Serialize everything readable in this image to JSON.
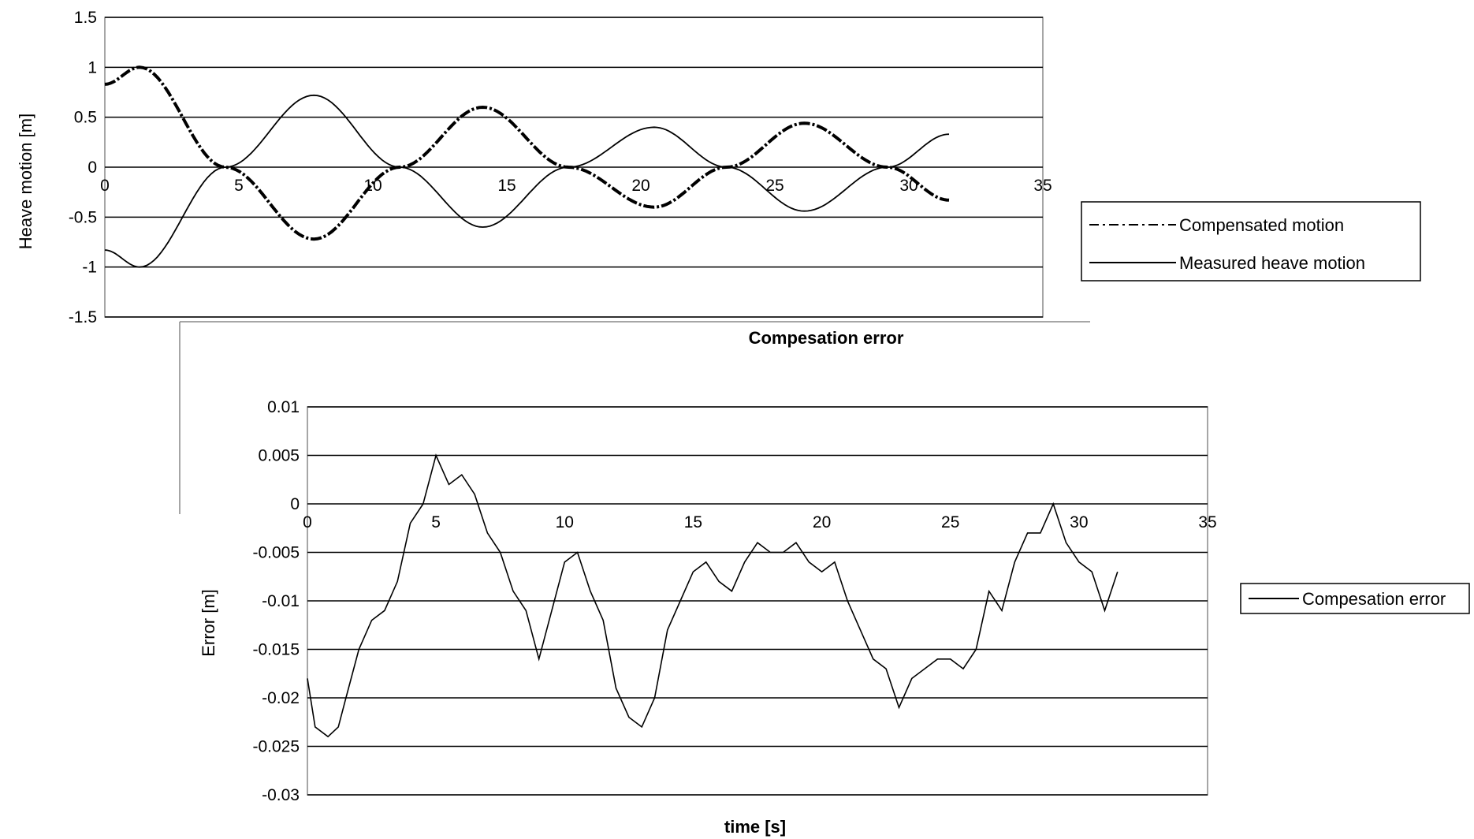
{
  "chart_data": [
    {
      "type": "line",
      "title": "",
      "xlabel": "",
      "ylabel": "Heave motion [m]",
      "xlim": [
        0,
        35
      ],
      "ylim": [
        -1.5,
        1.5
      ],
      "xticks": [
        "0",
        "5",
        "10",
        "15",
        "20",
        "25",
        "30",
        "35"
      ],
      "yticks": [
        "1.5",
        "1",
        "0.5",
        "0",
        "-0.5",
        "-1",
        "-1.5"
      ],
      "grid": "horizontal",
      "legend_position": "right",
      "series": [
        {
          "name": "Compensated motion",
          "style": "dash-dot",
          "x": [
            0,
            1.3,
            4.5,
            7.8,
            11,
            14.1,
            17.3,
            20.5,
            23.2,
            26.1,
            29.2,
            31.5
          ],
          "y": [
            0.83,
            1.0,
            0.0,
            -0.72,
            0.0,
            0.6,
            0.0,
            -0.4,
            0.0,
            0.44,
            0.0,
            -0.33
          ]
        },
        {
          "name": "Measured heave motion",
          "style": "solid",
          "x": [
            0,
            1.3,
            4.5,
            7.8,
            11,
            14.1,
            17.3,
            20.5,
            23.2,
            26.1,
            29.2,
            31.5
          ],
          "y": [
            -0.83,
            -1.0,
            0.0,
            0.72,
            0.0,
            -0.6,
            0.0,
            0.4,
            0.0,
            -0.44,
            0.0,
            0.33
          ]
        }
      ]
    },
    {
      "type": "line",
      "title": "Compesation error",
      "xlabel": "time [s]",
      "ylabel": "Error [m]",
      "xlim": [
        0,
        35
      ],
      "ylim": [
        -0.03,
        0.01
      ],
      "xticks": [
        "0",
        "5",
        "10",
        "15",
        "20",
        "25",
        "30",
        "35"
      ],
      "yticks": [
        "0.01",
        "0.005",
        "0",
        "-0.005",
        "-0.01",
        "-0.015",
        "-0.02",
        "-0.025",
        "-0.03"
      ],
      "grid": "horizontal",
      "legend_position": "right",
      "series": [
        {
          "name": "Compesation error",
          "style": "solid",
          "x": [
            0,
            0.3,
            0.8,
            1.2,
            1.5,
            2.0,
            2.5,
            3.0,
            3.5,
            4.0,
            4.5,
            5.0,
            5.5,
            6.0,
            6.5,
            7.0,
            7.5,
            8.0,
            8.5,
            9.0,
            9.5,
            10.0,
            10.5,
            11.0,
            11.5,
            12.0,
            12.5,
            13.0,
            13.5,
            14.0,
            14.5,
            15.0,
            15.5,
            16.0,
            16.5,
            17.0,
            17.5,
            18.0,
            18.5,
            19.0,
            19.5,
            20.0,
            20.5,
            21.0,
            21.5,
            22.0,
            22.5,
            23.0,
            23.5,
            24.0,
            24.5,
            25.0,
            25.5,
            26.0,
            26.5,
            27.0,
            27.5,
            28.0,
            28.5,
            29.0,
            29.5,
            30.0,
            30.5,
            31.0,
            31.5
          ],
          "y": [
            -0.018,
            -0.023,
            -0.024,
            -0.023,
            -0.02,
            -0.015,
            -0.012,
            -0.011,
            -0.008,
            -0.002,
            0.0,
            0.005,
            0.002,
            0.003,
            0.001,
            -0.003,
            -0.005,
            -0.009,
            -0.011,
            -0.016,
            -0.011,
            -0.006,
            -0.005,
            -0.009,
            -0.012,
            -0.019,
            -0.022,
            -0.023,
            -0.02,
            -0.013,
            -0.01,
            -0.007,
            -0.006,
            -0.008,
            -0.009,
            -0.006,
            -0.004,
            -0.005,
            -0.005,
            -0.004,
            -0.006,
            -0.007,
            -0.006,
            -0.01,
            -0.013,
            -0.016,
            -0.017,
            -0.021,
            -0.018,
            -0.017,
            -0.016,
            -0.016,
            -0.017,
            -0.015,
            -0.009,
            -0.011,
            -0.006,
            -0.003,
            -0.003,
            0.0,
            -0.004,
            -0.006,
            -0.007,
            -0.011,
            -0.007
          ]
        }
      ]
    }
  ]
}
